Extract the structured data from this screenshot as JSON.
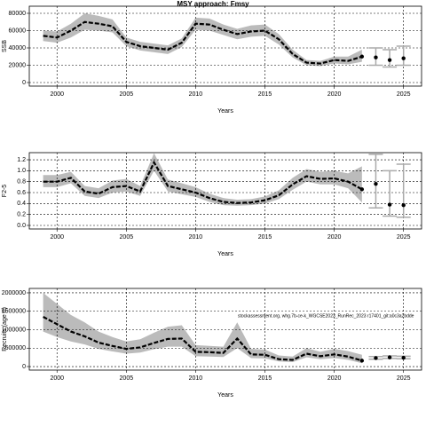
{
  "chart_data": [
    {
      "type": "line",
      "title": "MSY approach: Fmsy",
      "ylabel": "SSB",
      "xlabel": "Years",
      "x": [
        1999,
        2000,
        2001,
        2002,
        2003,
        2004,
        2005,
        2006,
        2007,
        2008,
        2009,
        2010,
        2011,
        2012,
        2013,
        2014,
        2015,
        2016,
        2017,
        2018,
        2019,
        2020,
        2021,
        2022
      ],
      "values": [
        54000,
        52000,
        60000,
        70000,
        68000,
        65000,
        47000,
        42000,
        40000,
        38000,
        46000,
        68000,
        67000,
        61000,
        56000,
        59000,
        60000,
        50000,
        33000,
        23000,
        22000,
        26000,
        25000,
        30000
      ],
      "lower": [
        48000,
        46000,
        52000,
        61000,
        60000,
        58000,
        42000,
        37000,
        35000,
        33000,
        41000,
        61000,
        60000,
        55000,
        50000,
        53000,
        54000,
        44000,
        29000,
        20000,
        19000,
        22000,
        21000,
        24000
      ],
      "upper": [
        60000,
        59000,
        68000,
        80000,
        77000,
        73000,
        52000,
        47000,
        45000,
        43000,
        51000,
        75000,
        74000,
        67000,
        62000,
        66000,
        67000,
        56000,
        38000,
        26000,
        25000,
        30000,
        30000,
        38000
      ],
      "forecast": {
        "x": [
          2023,
          2024,
          2025
        ],
        "values": [
          29000,
          26000,
          28000
        ],
        "lower": [
          20000,
          18000,
          20000
        ],
        "upper": [
          40000,
          38000,
          42000
        ]
      },
      "xlim": [
        1998,
        2026.3
      ],
      "xticks": [
        2000,
        2005,
        2010,
        2015,
        2020,
        2025
      ],
      "ylim": [
        -4100,
        88200
      ],
      "yticks": [
        0,
        20000,
        40000,
        60000,
        80000
      ],
      "grid": true,
      "color": "#000000",
      "band_color": "#bbbbbb"
    },
    {
      "type": "line",
      "ylabel": "F2-5",
      "xlabel": "Years",
      "x": [
        1999,
        2000,
        2001,
        2002,
        2003,
        2004,
        2005,
        2006,
        2007,
        2008,
        2009,
        2010,
        2011,
        2012,
        2013,
        2014,
        2015,
        2016,
        2017,
        2018,
        2019,
        2020,
        2021,
        2022
      ],
      "values": [
        0.8,
        0.8,
        0.87,
        0.62,
        0.58,
        0.7,
        0.72,
        0.62,
        1.15,
        0.72,
        0.66,
        0.6,
        0.5,
        0.43,
        0.41,
        0.42,
        0.46,
        0.55,
        0.75,
        0.9,
        0.85,
        0.86,
        0.8,
        0.66
      ],
      "lower": [
        0.7,
        0.7,
        0.77,
        0.54,
        0.5,
        0.6,
        0.62,
        0.54,
        1.0,
        0.62,
        0.57,
        0.52,
        0.43,
        0.37,
        0.36,
        0.37,
        0.4,
        0.48,
        0.65,
        0.8,
        0.75,
        0.75,
        0.68,
        0.42
      ],
      "upper": [
        0.92,
        0.92,
        0.98,
        0.72,
        0.68,
        0.82,
        0.85,
        0.72,
        1.32,
        0.84,
        0.77,
        0.7,
        0.58,
        0.5,
        0.47,
        0.48,
        0.53,
        0.64,
        0.87,
        1.03,
        0.98,
        1.0,
        0.95,
        1.08
      ],
      "forecast": {
        "x": [
          2023,
          2024,
          2025
        ],
        "values": [
          0.76,
          0.38,
          0.37
        ],
        "lower": [
          0.32,
          0.17,
          0.15
        ],
        "upper": [
          1.3,
          1.0,
          1.12
        ]
      },
      "xlim": [
        1998,
        2026.3
      ],
      "xticks": [
        2000,
        2005,
        2010,
        2015,
        2020,
        2025
      ],
      "ylim": [
        -0.065,
        1.33
      ],
      "yticks": [
        {
          "value": 0,
          "label": "0.0"
        },
        0.2,
        0.4,
        0.6,
        0.8,
        {
          "value": 1,
          "label": "1.0"
        },
        1.2
      ],
      "grid": true,
      "color": "#000000",
      "band_color": "#bbbbbb"
    },
    {
      "type": "line",
      "ylabel": "Recruits (age 0)",
      "xlabel": "Years",
      "annotation": "stockassessment.org, whg.7b-ce-k_WGCSE2023_RunRec_2023 r17401_git:a0c3a2bdde",
      "x": [
        1999,
        2000,
        2001,
        2002,
        2003,
        2004,
        2005,
        2006,
        2007,
        2008,
        2009,
        2010,
        2011,
        2012,
        2013,
        2014,
        2015,
        2016,
        2017,
        2018,
        2019,
        2020,
        2021,
        2022
      ],
      "values": [
        1350000,
        1150000,
        950000,
        820000,
        650000,
        560000,
        480000,
        520000,
        640000,
        750000,
        760000,
        400000,
        390000,
        370000,
        760000,
        330000,
        320000,
        200000,
        180000,
        350000,
        280000,
        330000,
        270000,
        160000
      ],
      "lower": [
        950000,
        800000,
        680000,
        600000,
        480000,
        410000,
        350000,
        380000,
        470000,
        540000,
        540000,
        280000,
        270000,
        260000,
        500000,
        230000,
        220000,
        140000,
        120000,
        250000,
        200000,
        230000,
        180000,
        90000
      ],
      "upper": [
        2000000,
        1700000,
        1400000,
        1200000,
        950000,
        800000,
        680000,
        740000,
        920000,
        1080000,
        1120000,
        580000,
        560000,
        540000,
        1200000,
        480000,
        460000,
        300000,
        270000,
        500000,
        400000,
        480000,
        420000,
        320000
      ],
      "forecast": {
        "x": [
          2023,
          2024,
          2025
        ],
        "values": [
          230000,
          250000,
          240000
        ],
        "lower": [
          200000,
          220000,
          210000
        ],
        "upper": [
          270000,
          290000,
          280000
        ]
      },
      "xlim": [
        1998,
        2026.3
      ],
      "xticks": [
        2000,
        2005,
        2010,
        2015,
        2020,
        2025
      ],
      "ylim": [
        -96000,
        2120000
      ],
      "yticks": [
        0,
        500000,
        1000000,
        1500000,
        2000000
      ],
      "grid": true,
      "color": "#000000",
      "band_color": "#bbbbbb"
    }
  ]
}
